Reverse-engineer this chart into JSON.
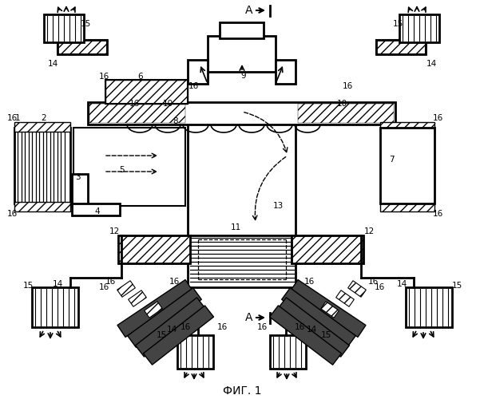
{
  "title": "ФИГ. 1",
  "bg_color": "#ffffff",
  "fig_width": 6.06,
  "fig_height": 5.0,
  "dpi": 100
}
